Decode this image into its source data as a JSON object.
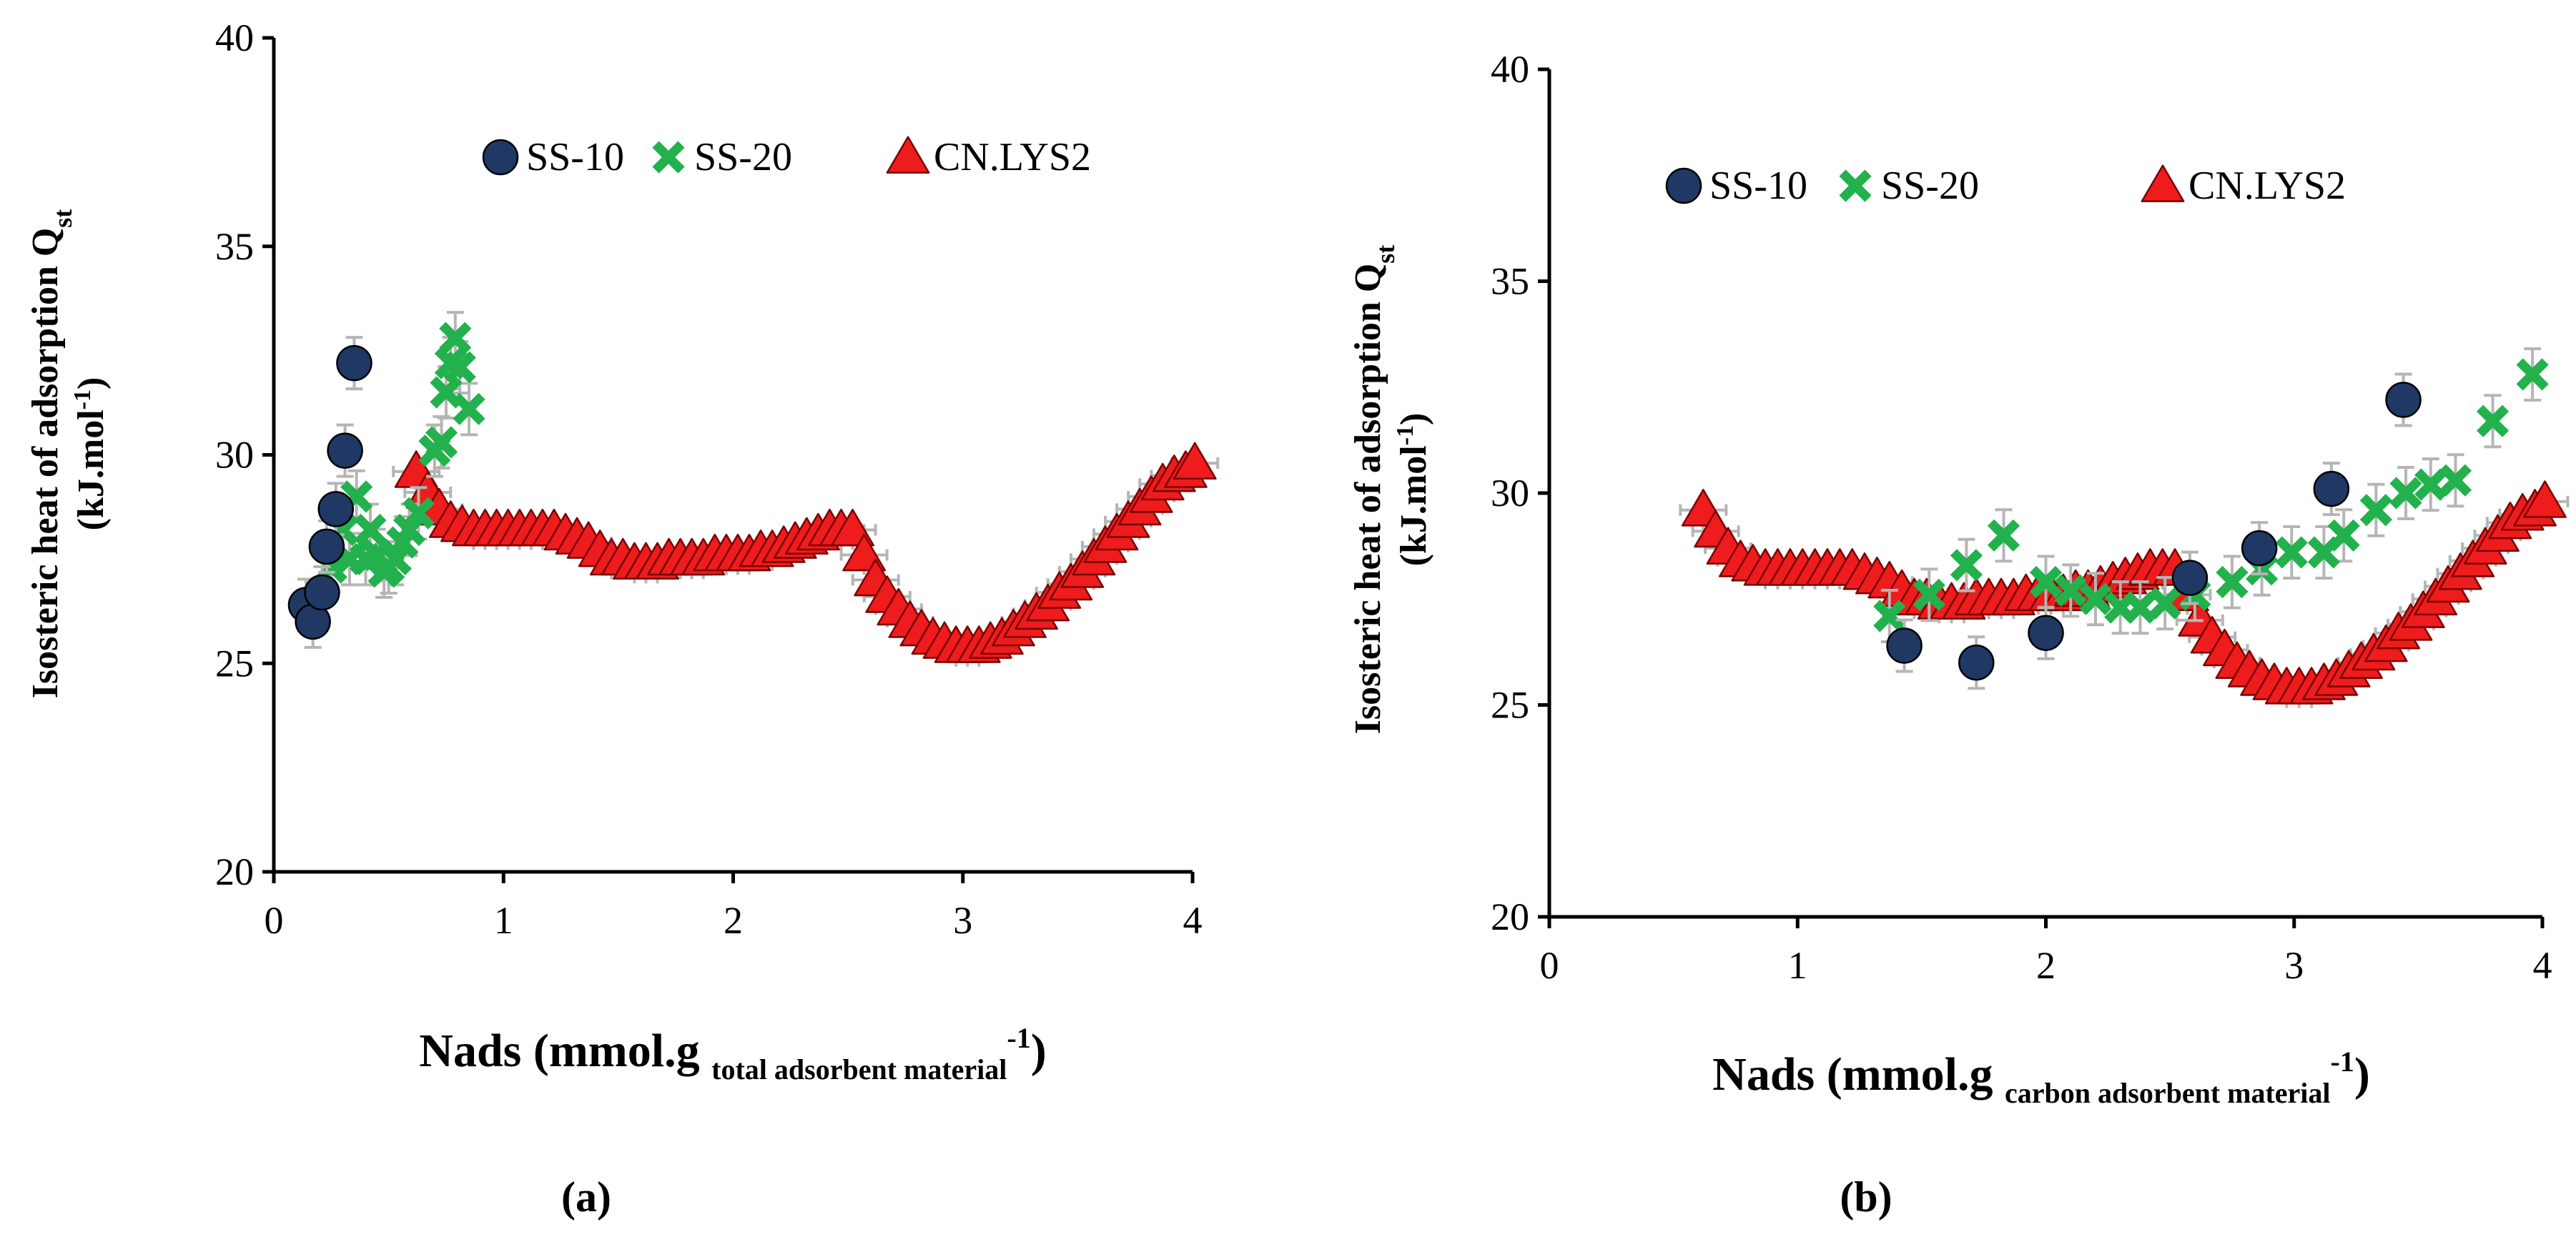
{
  "chart_data": [
    {
      "panel": "a",
      "caption": "(a)",
      "type": "scatter",
      "ylabel": "Isosteric heat of adsorption Q",
      "ylabel_sub": "st",
      "ylabel_unit_prefix": "(kJ.mol",
      "ylabel_unit_sup": "-1",
      "ylabel_unit_suffix": ")",
      "xlabel_prefix": "Nads (mmol.g",
      "xlabel_sub": "total adsorbent material",
      "xlabel_sup": "-1",
      "xlabel_suffix": ")",
      "xlim": [
        0,
        4
      ],
      "ylim": [
        20,
        40
      ],
      "xticks": [
        "0",
        "1",
        "2",
        "3",
        "4"
      ],
      "yticks": [
        "20",
        "25",
        "30",
        "35",
        "40"
      ],
      "legend_position": "top-right",
      "series": [
        {
          "name": "SS-10",
          "marker": "circle",
          "color": "#1f3864",
          "points": [
            [
              0.14,
              26.4
            ],
            [
              0.17,
              26.0
            ],
            [
              0.21,
              26.7
            ],
            [
              0.23,
              27.8
            ],
            [
              0.27,
              28.7
            ],
            [
              0.31,
              30.1
            ],
            [
              0.35,
              32.2
            ]
          ]
        },
        {
          "name": "SS-20",
          "marker": "x",
          "color": "#22b14c",
          "points": [
            [
              0.25,
              27.3
            ],
            [
              0.3,
              28.2
            ],
            [
              0.33,
              27.5
            ],
            [
              0.36,
              29.0
            ],
            [
              0.4,
              27.5
            ],
            [
              0.42,
              28.2
            ],
            [
              0.45,
              27.6
            ],
            [
              0.48,
              27.2
            ],
            [
              0.5,
              27.3
            ],
            [
              0.53,
              27.5
            ],
            [
              0.56,
              27.9
            ],
            [
              0.59,
              28.2
            ],
            [
              0.63,
              28.6
            ],
            [
              0.7,
              30.1
            ],
            [
              0.73,
              30.3
            ],
            [
              0.75,
              31.5
            ],
            [
              0.77,
              32.2
            ],
            [
              0.79,
              32.8
            ],
            [
              0.81,
              32.1
            ],
            [
              0.85,
              31.1
            ]
          ]
        },
        {
          "name": "CN.LYS2",
          "marker": "triangle",
          "color": "#ee1c1c",
          "points": [
            [
              0.62,
              29.6
            ],
            [
              0.67,
              29.1
            ],
            [
              0.72,
              28.7
            ],
            [
              0.77,
              28.4
            ],
            [
              0.82,
              28.3
            ],
            [
              0.87,
              28.2
            ],
            [
              0.92,
              28.2
            ],
            [
              0.97,
              28.2
            ],
            [
              1.02,
              28.2
            ],
            [
              1.07,
              28.2
            ],
            [
              1.12,
              28.2
            ],
            [
              1.17,
              28.2
            ],
            [
              1.22,
              28.2
            ],
            [
              1.27,
              28.1
            ],
            [
              1.32,
              28.0
            ],
            [
              1.37,
              27.9
            ],
            [
              1.42,
              27.7
            ],
            [
              1.47,
              27.5
            ],
            [
              1.52,
              27.5
            ],
            [
              1.57,
              27.4
            ],
            [
              1.62,
              27.4
            ],
            [
              1.67,
              27.4
            ],
            [
              1.72,
              27.5
            ],
            [
              1.77,
              27.5
            ],
            [
              1.82,
              27.5
            ],
            [
              1.87,
              27.5
            ],
            [
              1.92,
              27.6
            ],
            [
              1.97,
              27.6
            ],
            [
              2.02,
              27.6
            ],
            [
              2.07,
              27.6
            ],
            [
              2.12,
              27.7
            ],
            [
              2.17,
              27.7
            ],
            [
              2.22,
              27.8
            ],
            [
              2.27,
              27.9
            ],
            [
              2.32,
              28.0
            ],
            [
              2.37,
              28.1
            ],
            [
              2.42,
              28.2
            ],
            [
              2.47,
              28.2
            ],
            [
              2.52,
              28.2
            ],
            [
              2.57,
              27.6
            ],
            [
              2.62,
              27.0
            ],
            [
              2.67,
              26.6
            ],
            [
              2.72,
              26.3
            ],
            [
              2.77,
              26.0
            ],
            [
              2.82,
              25.8
            ],
            [
              2.87,
              25.6
            ],
            [
              2.92,
              25.5
            ],
            [
              2.97,
              25.4
            ],
            [
              3.02,
              25.4
            ],
            [
              3.07,
              25.4
            ],
            [
              3.12,
              25.5
            ],
            [
              3.17,
              25.6
            ],
            [
              3.22,
              25.8
            ],
            [
              3.27,
              26.0
            ],
            [
              3.32,
              26.2
            ],
            [
              3.37,
              26.4
            ],
            [
              3.42,
              26.7
            ],
            [
              3.47,
              26.9
            ],
            [
              3.52,
              27.2
            ],
            [
              3.57,
              27.5
            ],
            [
              3.62,
              27.8
            ],
            [
              3.67,
              28.1
            ],
            [
              3.72,
              28.4
            ],
            [
              3.77,
              28.7
            ],
            [
              3.82,
              29.0
            ],
            [
              3.87,
              29.3
            ],
            [
              3.92,
              29.5
            ],
            [
              3.97,
              29.6
            ],
            [
              4.01,
              29.8
            ]
          ]
        }
      ]
    },
    {
      "panel": "b",
      "caption": "(b)",
      "type": "scatter",
      "ylabel": "Isosteric heat of adsorption Q",
      "ylabel_sub": "st",
      "ylabel_unit_prefix": "(kJ.mol",
      "ylabel_unit_sup": "-1",
      "ylabel_unit_suffix": ")",
      "xlabel_prefix": "Nads (mmol.g",
      "xlabel_sub": "carbon adsorbent material",
      "xlabel_sup": "-1",
      "xlabel_suffix": ")",
      "xlim": [
        0,
        4
      ],
      "ylim": [
        20,
        40
      ],
      "xticks": [
        "0",
        "1",
        "2",
        "3",
        "4"
      ],
      "yticks": [
        "20",
        "25",
        "30",
        "35",
        "40"
      ],
      "legend_position": "top",
      "series": [
        {
          "name": "SS-10",
          "marker": "circle",
          "color": "#1f3864",
          "points": [
            [
              1.43,
              26.4
            ],
            [
              1.72,
              26.0
            ],
            [
              2.0,
              26.7
            ],
            [
              2.58,
              28.0
            ],
            [
              2.86,
              28.7
            ],
            [
              3.15,
              30.1
            ],
            [
              3.44,
              32.2
            ]
          ]
        },
        {
          "name": "SS-20",
          "marker": "x",
          "color": "#22b14c",
          "points": [
            [
              1.37,
              27.1
            ],
            [
              1.53,
              27.6
            ],
            [
              1.68,
              28.3
            ],
            [
              1.83,
              29.0
            ],
            [
              2.0,
              27.9
            ],
            [
              2.1,
              27.7
            ],
            [
              2.2,
              27.5
            ],
            [
              2.3,
              27.3
            ],
            [
              2.38,
              27.3
            ],
            [
              2.48,
              27.4
            ],
            [
              2.6,
              27.6
            ],
            [
              2.75,
              27.9
            ],
            [
              2.87,
              28.2
            ],
            [
              2.99,
              28.6
            ],
            [
              3.12,
              28.6
            ],
            [
              3.2,
              29.0
            ],
            [
              3.33,
              29.6
            ],
            [
              3.45,
              30.0
            ],
            [
              3.55,
              30.2
            ],
            [
              3.65,
              30.3
            ],
            [
              3.8,
              31.7
            ],
            [
              3.96,
              32.8
            ]
          ]
        },
        {
          "name": "CN.LYS2",
          "marker": "triangle",
          "color": "#ee1c1c",
          "points": [
            [
              0.62,
              29.6
            ],
            [
              0.67,
              29.1
            ],
            [
              0.72,
              28.7
            ],
            [
              0.77,
              28.4
            ],
            [
              0.82,
              28.3
            ],
            [
              0.87,
              28.2
            ],
            [
              0.92,
              28.2
            ],
            [
              0.97,
              28.2
            ],
            [
              1.02,
              28.2
            ],
            [
              1.07,
              28.2
            ],
            [
              1.12,
              28.2
            ],
            [
              1.17,
              28.2
            ],
            [
              1.22,
              28.2
            ],
            [
              1.27,
              28.1
            ],
            [
              1.32,
              28.0
            ],
            [
              1.37,
              27.9
            ],
            [
              1.42,
              27.7
            ],
            [
              1.47,
              27.5
            ],
            [
              1.52,
              27.5
            ],
            [
              1.57,
              27.4
            ],
            [
              1.62,
              27.4
            ],
            [
              1.67,
              27.4
            ],
            [
              1.72,
              27.5
            ],
            [
              1.77,
              27.5
            ],
            [
              1.82,
              27.5
            ],
            [
              1.87,
              27.5
            ],
            [
              1.92,
              27.6
            ],
            [
              1.97,
              27.6
            ],
            [
              2.02,
              27.6
            ],
            [
              2.07,
              27.6
            ],
            [
              2.12,
              27.7
            ],
            [
              2.17,
              27.7
            ],
            [
              2.22,
              27.8
            ],
            [
              2.27,
              27.9
            ],
            [
              2.32,
              28.0
            ],
            [
              2.37,
              28.1
            ],
            [
              2.42,
              28.2
            ],
            [
              2.47,
              28.2
            ],
            [
              2.52,
              28.2
            ],
            [
              2.57,
              27.6
            ],
            [
              2.62,
              27.0
            ],
            [
              2.67,
              26.6
            ],
            [
              2.72,
              26.3
            ],
            [
              2.77,
              26.0
            ],
            [
              2.82,
              25.8
            ],
            [
              2.87,
              25.6
            ],
            [
              2.92,
              25.5
            ],
            [
              2.97,
              25.4
            ],
            [
              3.02,
              25.4
            ],
            [
              3.07,
              25.4
            ],
            [
              3.12,
              25.5
            ],
            [
              3.17,
              25.6
            ],
            [
              3.22,
              25.8
            ],
            [
              3.27,
              26.0
            ],
            [
              3.32,
              26.2
            ],
            [
              3.37,
              26.4
            ],
            [
              3.42,
              26.7
            ],
            [
              3.47,
              26.9
            ],
            [
              3.52,
              27.2
            ],
            [
              3.57,
              27.5
            ],
            [
              3.62,
              27.8
            ],
            [
              3.67,
              28.1
            ],
            [
              3.72,
              28.4
            ],
            [
              3.77,
              28.7
            ],
            [
              3.82,
              29.0
            ],
            [
              3.87,
              29.3
            ],
            [
              3.92,
              29.5
            ],
            [
              3.97,
              29.6
            ],
            [
              4.01,
              29.8
            ]
          ]
        }
      ]
    }
  ]
}
